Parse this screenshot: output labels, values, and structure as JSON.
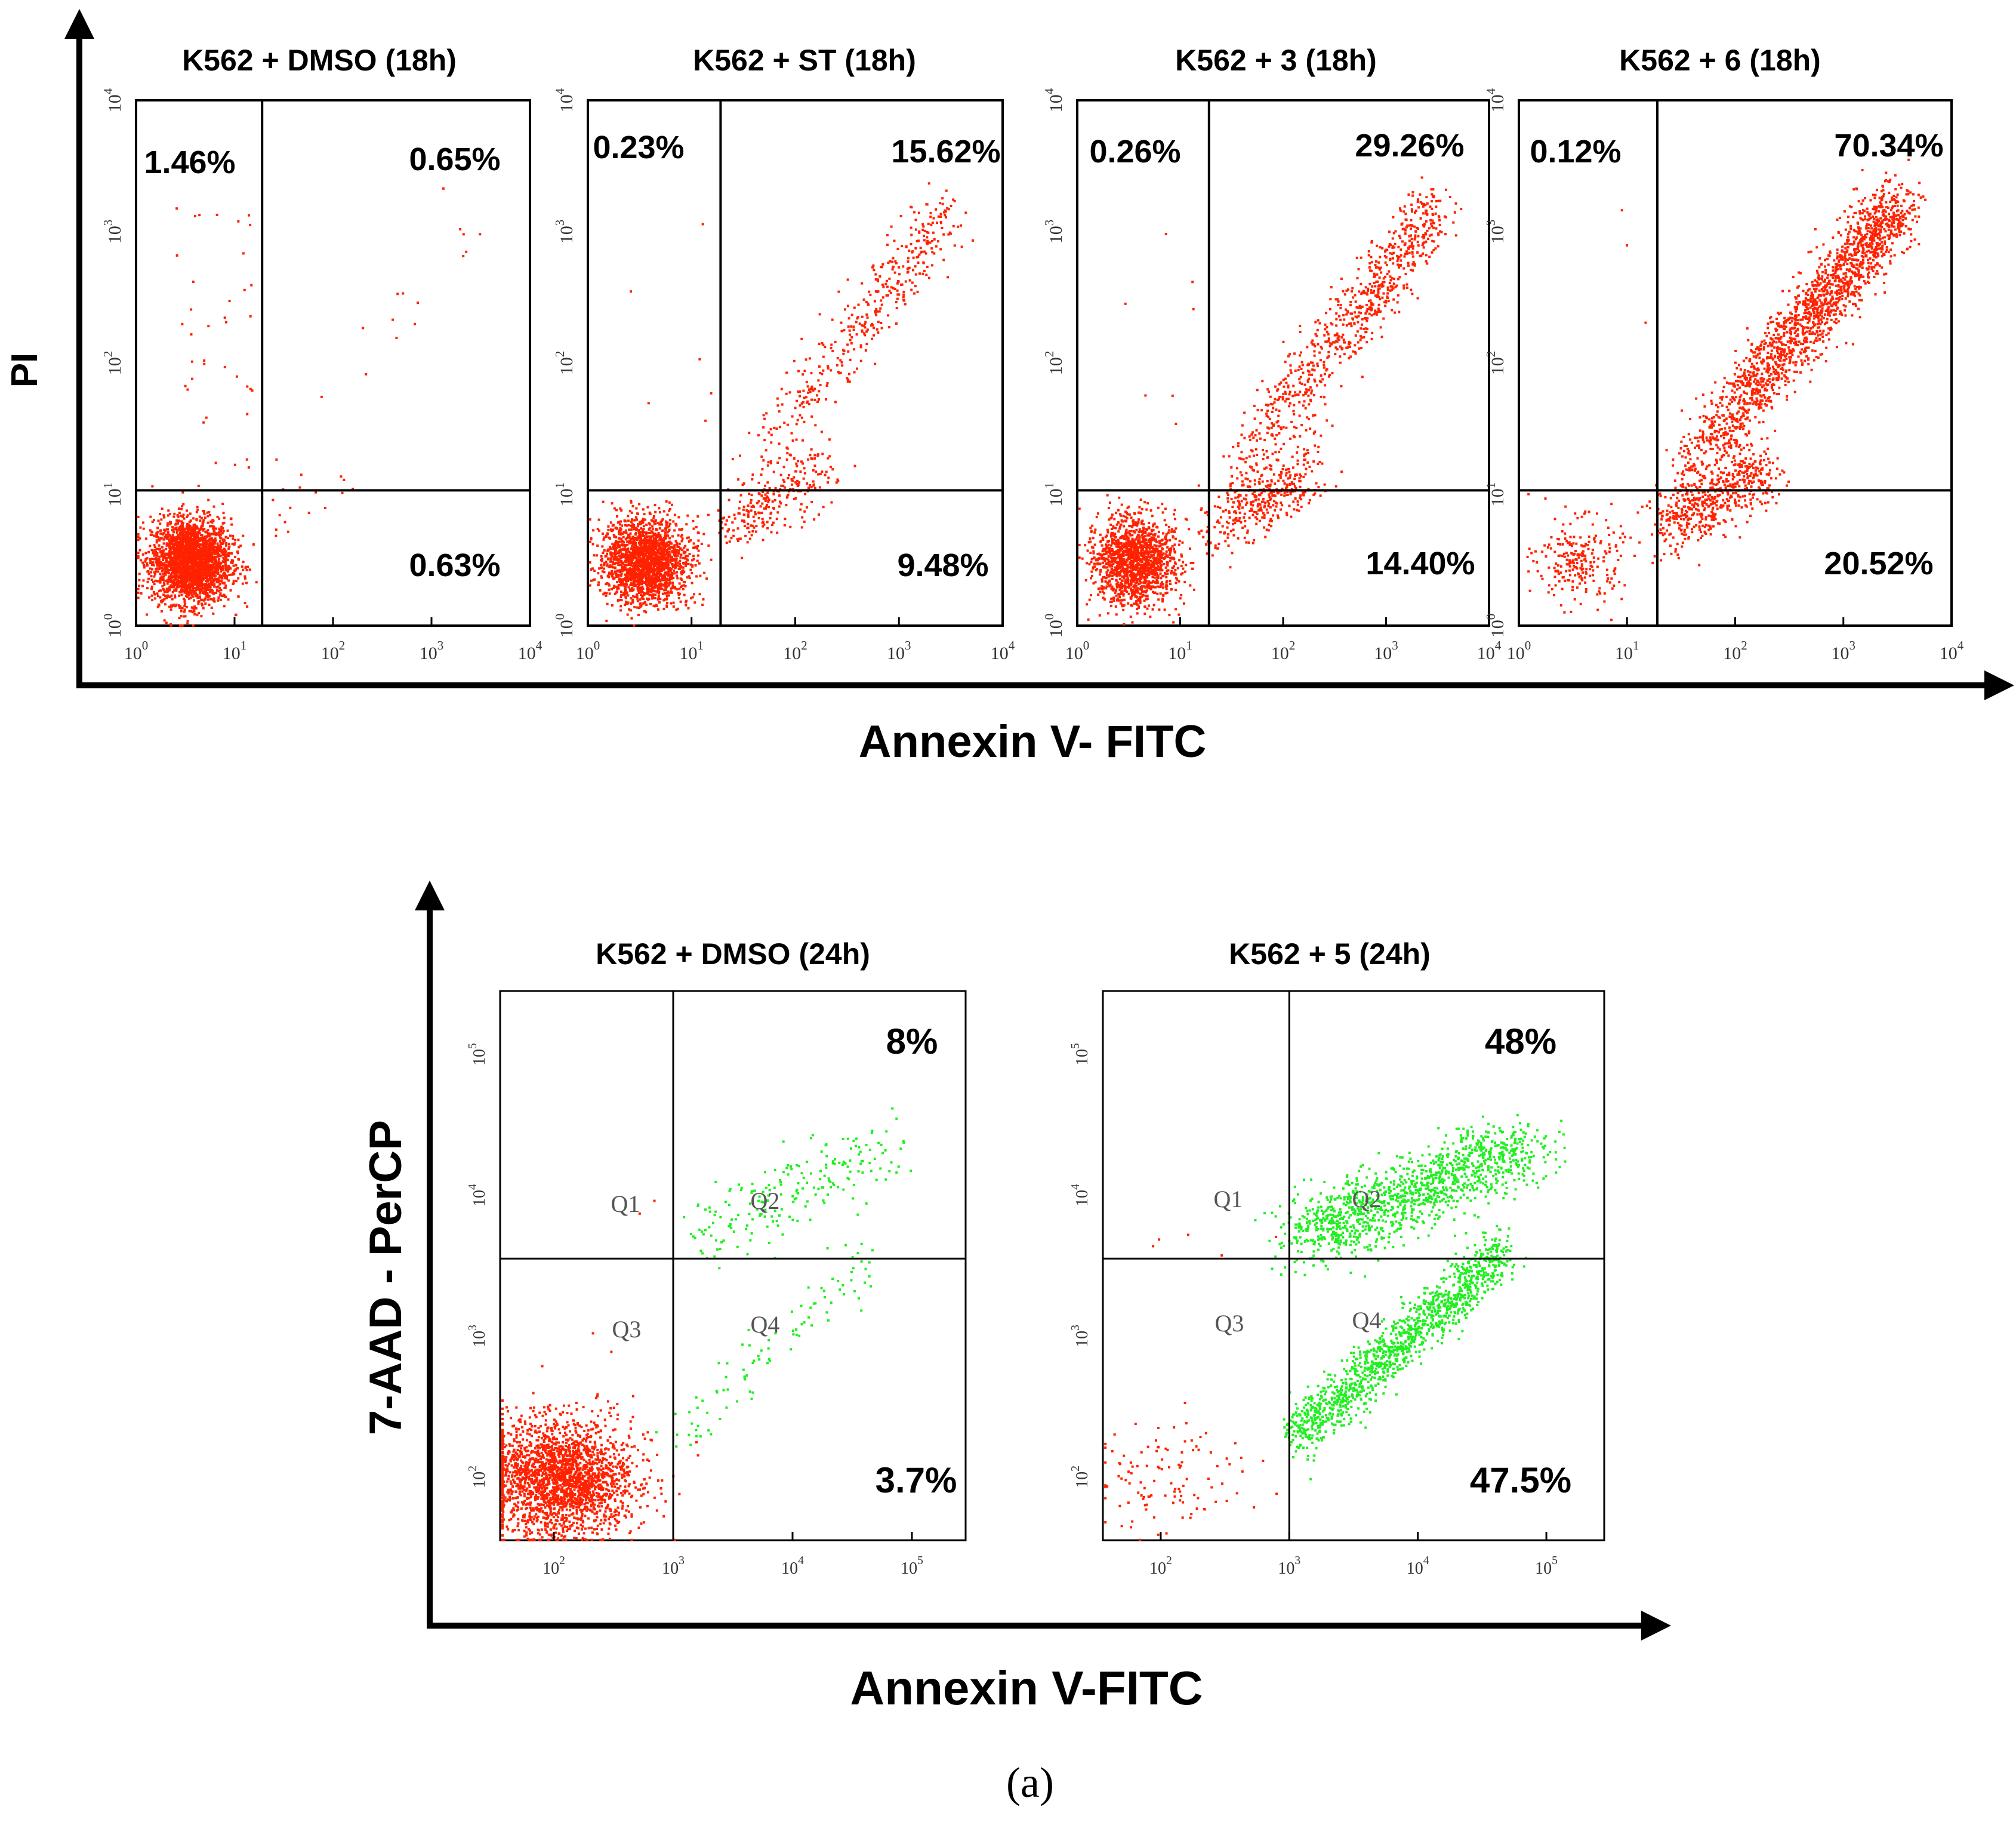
{
  "chart_data": {
    "type": "scatter",
    "caption": "(a)",
    "panel_sets": [
      {
        "id": "top",
        "ylabel": "PI",
        "xlabel": "Annexin V- FITC",
        "tick_labels": [
          "10",
          "10",
          "10",
          "10",
          "10"
        ],
        "tick_exponents": [
          "0",
          "1",
          "2",
          "3",
          "4"
        ],
        "axis_range_log10": [
          0,
          4
        ],
        "gate_x": 1.28,
        "gate_y": 1.03,
        "panels": [
          {
            "title": "K562 + DMSO (18h)",
            "upper_left": "1.46%",
            "upper_right": "0.65%",
            "lower_right": "0.63%",
            "pct_upper_left": 1.46,
            "pct_upper_right": 0.65,
            "pct_lower_right": 0.63
          },
          {
            "title": "K562 + ST (18h)",
            "upper_left": "0.23%",
            "upper_right": "15.62%",
            "lower_right": "9.48%",
            "pct_upper_left": 0.23,
            "pct_upper_right": 15.62,
            "pct_lower_right": 9.48
          },
          {
            "title": "K562 + 3 (18h)",
            "upper_left": "0.26%",
            "upper_right": "29.26%",
            "lower_right": "14.40%",
            "pct_upper_left": 0.26,
            "pct_upper_right": 29.26,
            "pct_lower_right": 14.4
          },
          {
            "title": "K562 + 6 (18h)",
            "upper_left": "0.12%",
            "upper_right": "70.34%",
            "lower_right": "20.52%",
            "pct_upper_left": 0.12,
            "pct_upper_right": 70.34,
            "pct_lower_right": 20.52
          }
        ]
      },
      {
        "id": "bottom",
        "ylabel": "7-AAD  - PerCP",
        "xlabel": "Annexin V-FITC",
        "tick_labels": [
          "10",
          "10",
          "10",
          "10"
        ],
        "tick_exponents": [
          "2",
          "3",
          "4",
          "5"
        ],
        "axis_range_log10": [
          1.55,
          5.45
        ],
        "gate_x": 3.0,
        "gate_y": 3.55,
        "quadrant_labels": [
          "Q1",
          "Q2",
          "Q3",
          "Q4"
        ],
        "panels": [
          {
            "title": "K562 + DMSO (24h)",
            "upper_right": "8%",
            "lower_right": "3.7%",
            "pct_upper_right": 8,
            "pct_lower_right": 3.7
          },
          {
            "title": "K562 + 5 (24h)",
            "upper_right": "48%",
            "lower_right": "47.5%",
            "pct_upper_right": 48,
            "pct_lower_right": 47.5
          }
        ]
      }
    ],
    "colors": {
      "live_events": "#ff2200",
      "apoptotic_events": "#22ee22",
      "axis": "#000000"
    }
  }
}
